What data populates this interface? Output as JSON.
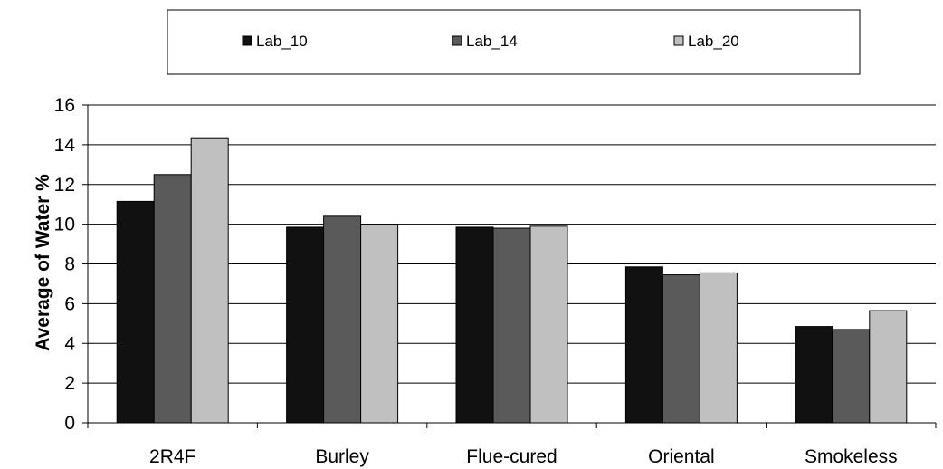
{
  "chart_data": {
    "type": "bar",
    "title": "",
    "xlabel": "",
    "ylabel": "Average of  Water %",
    "ylim": [
      0,
      16
    ],
    "yticks": [
      0,
      2,
      4,
      6,
      8,
      10,
      12,
      14,
      16
    ],
    "grid": true,
    "legend_position": "top",
    "categories": [
      "2R4F",
      "Burley",
      "Flue-cured",
      "Oriental",
      "Smokeless"
    ],
    "series": [
      {
        "name": "Lab_10",
        "color": "#111111",
        "values": [
          11.15,
          9.85,
          9.85,
          7.85,
          4.85
        ]
      },
      {
        "name": "Lab_14",
        "color": "#5a5a5a",
        "values": [
          12.5,
          10.4,
          9.8,
          7.45,
          4.7
        ]
      },
      {
        "name": "Lab_20",
        "color": "#c0c0c0",
        "values": [
          14.35,
          10.0,
          9.9,
          7.55,
          5.65
        ]
      }
    ]
  }
}
